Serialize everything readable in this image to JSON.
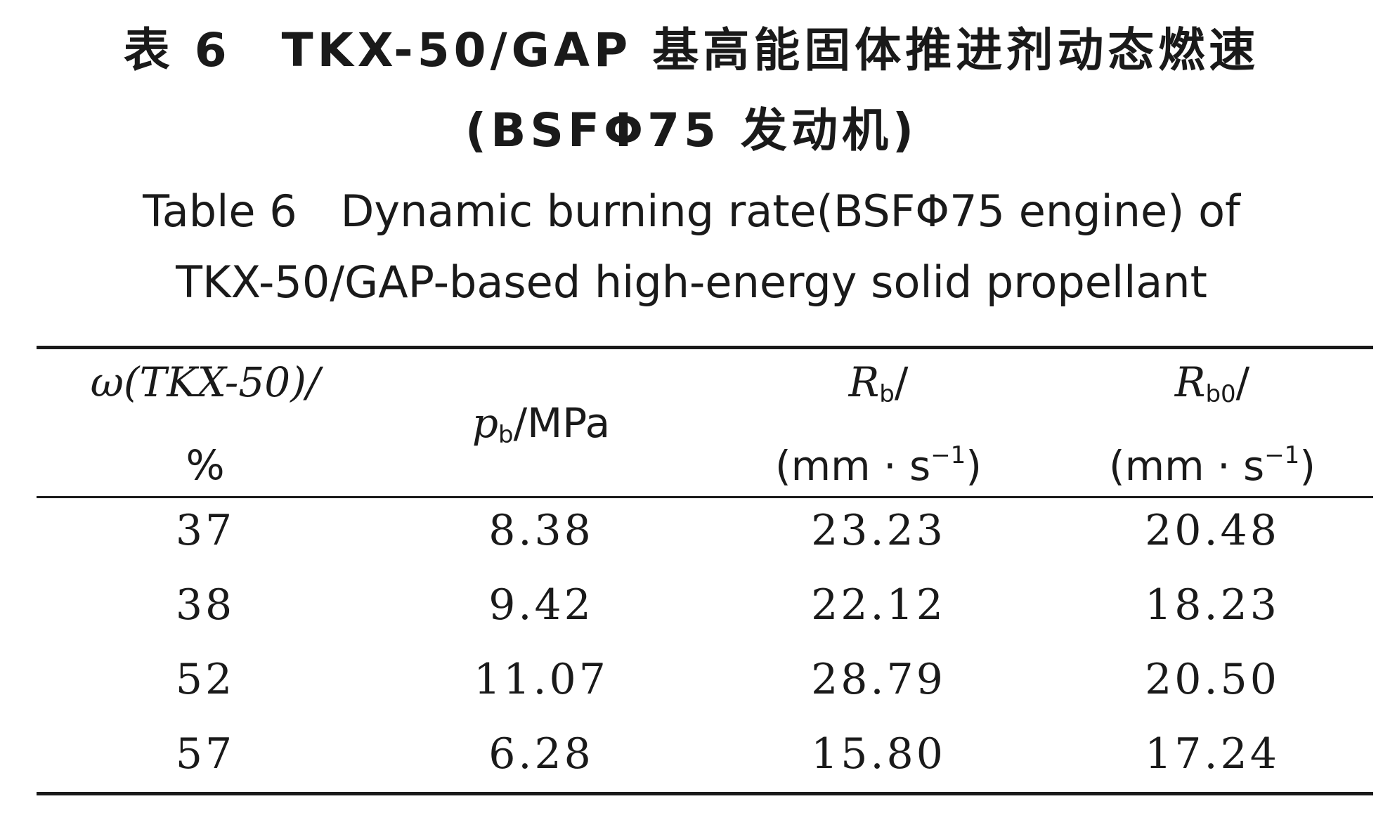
{
  "caption": {
    "cn_line1": "表 6　TKX-50/GAP 基高能固体推进剂动态燃速",
    "cn_line2": "(BSFΦ75 发动机)",
    "en_line1": "Table 6　Dynamic burning rate(BSFΦ75 engine) of",
    "en_line2": "TKX-50/GAP-based high-energy solid propellant"
  },
  "table": {
    "headers": {
      "col1_line1": "ω(TKX-50)/",
      "col1_line2": "%",
      "col2_symbol": "p",
      "col2_sub": "b",
      "col2_unit": "/MPa",
      "col3_symbol": "R",
      "col3_sub": "b",
      "col3_slash": "/",
      "col3_unit_pre": "(mm · s",
      "col3_unit_sup": "−1",
      "col3_unit_post": ")",
      "col4_symbol": "R",
      "col4_sub": "b0",
      "col4_slash": "/",
      "col4_unit_pre": "(mm · s",
      "col4_unit_sup": "−1",
      "col4_unit_post": ")"
    },
    "rows": [
      [
        "37",
        "8.38",
        "23.23",
        "20.48"
      ],
      [
        "38",
        "9.42",
        "22.12",
        "18.23"
      ],
      [
        "52",
        "11.07",
        "28.79",
        "20.50"
      ],
      [
        "57",
        "6.28",
        "15.80",
        "17.24"
      ]
    ]
  }
}
